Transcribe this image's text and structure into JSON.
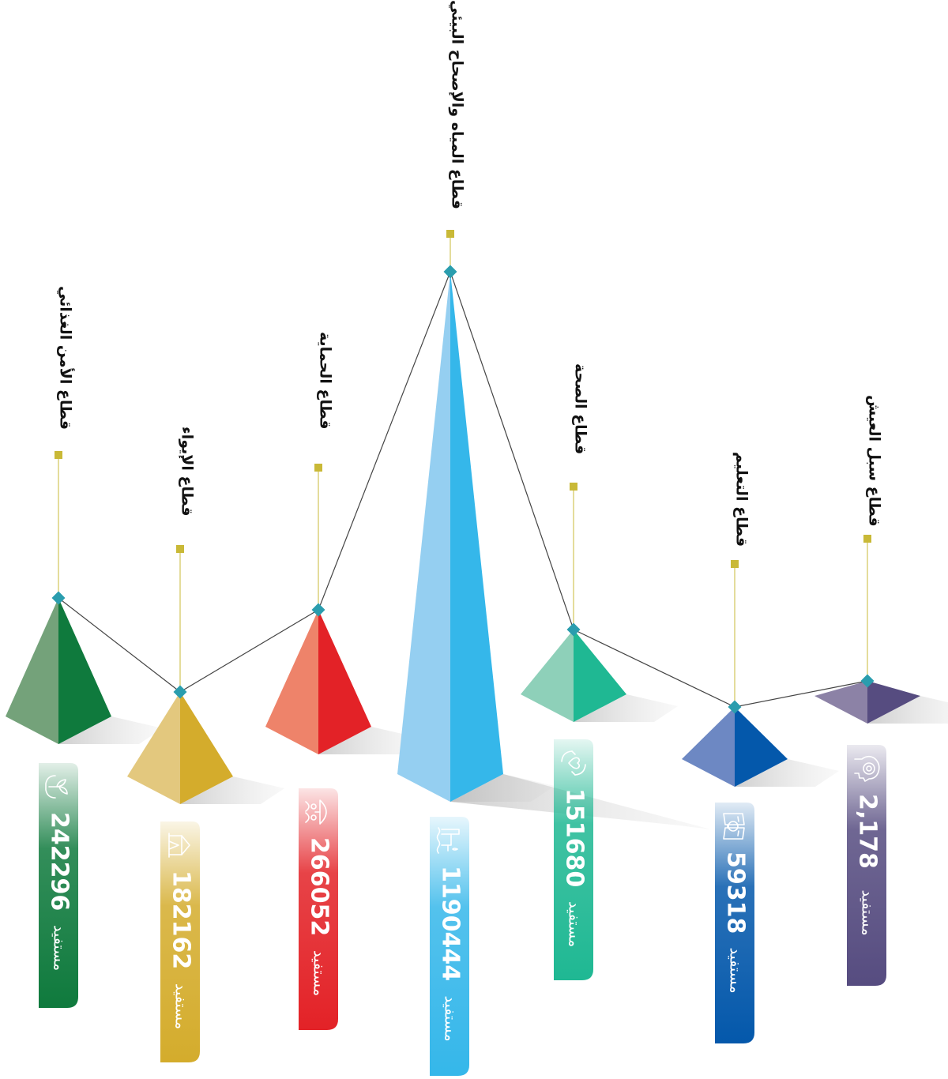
{
  "unit_label": "مستفيد",
  "chart_data": {
    "type": "bar",
    "orientation": "vertical pyramids, labels rotated 90°",
    "categories": [
      "قطاع الأمن الغذائي",
      "قطاع الإيواء",
      "قطاع الحماية",
      "قطاع المياه والإصحاح البيئي",
      "قطاع الصحة",
      "قطاع التعليم",
      "قطاع سبل العيش"
    ],
    "values": [
      242296,
      182162,
      266052,
      1190444,
      151680,
      59318,
      2178
    ],
    "value_labels": [
      "242296",
      "182162",
      "266052",
      "1190444",
      "151680",
      "59318",
      "2,178"
    ],
    "unit": "مستفيد",
    "colors": [
      {
        "dark": "#0f7a3d",
        "light": "#74a27a"
      },
      {
        "dark": "#d4ac2c",
        "light": "#e3c87e"
      },
      {
        "dark": "#e32227",
        "light": "#ee836a"
      },
      {
        "dark": "#35b7ea",
        "light": "#95cff1"
      },
      {
        "dark": "#1fb893",
        "light": "#8ed0b9"
      },
      {
        "dark": "#0458ab",
        "light": "#6d88c3"
      },
      {
        "dark": "#564c80",
        "light": "#8c82a6"
      }
    ],
    "icons": [
      "hands-plant-icon",
      "tent-icon",
      "umbrella-family-icon",
      "water-facility-icon",
      "hands-heart-icon",
      "book-lightbulb-icon",
      "head-target-icon"
    ],
    "connector_line_color": "#444444",
    "marker_color": "#2a9dae",
    "square_marker_color": "#c9b937",
    "pin_line_color": "#c9b937"
  }
}
